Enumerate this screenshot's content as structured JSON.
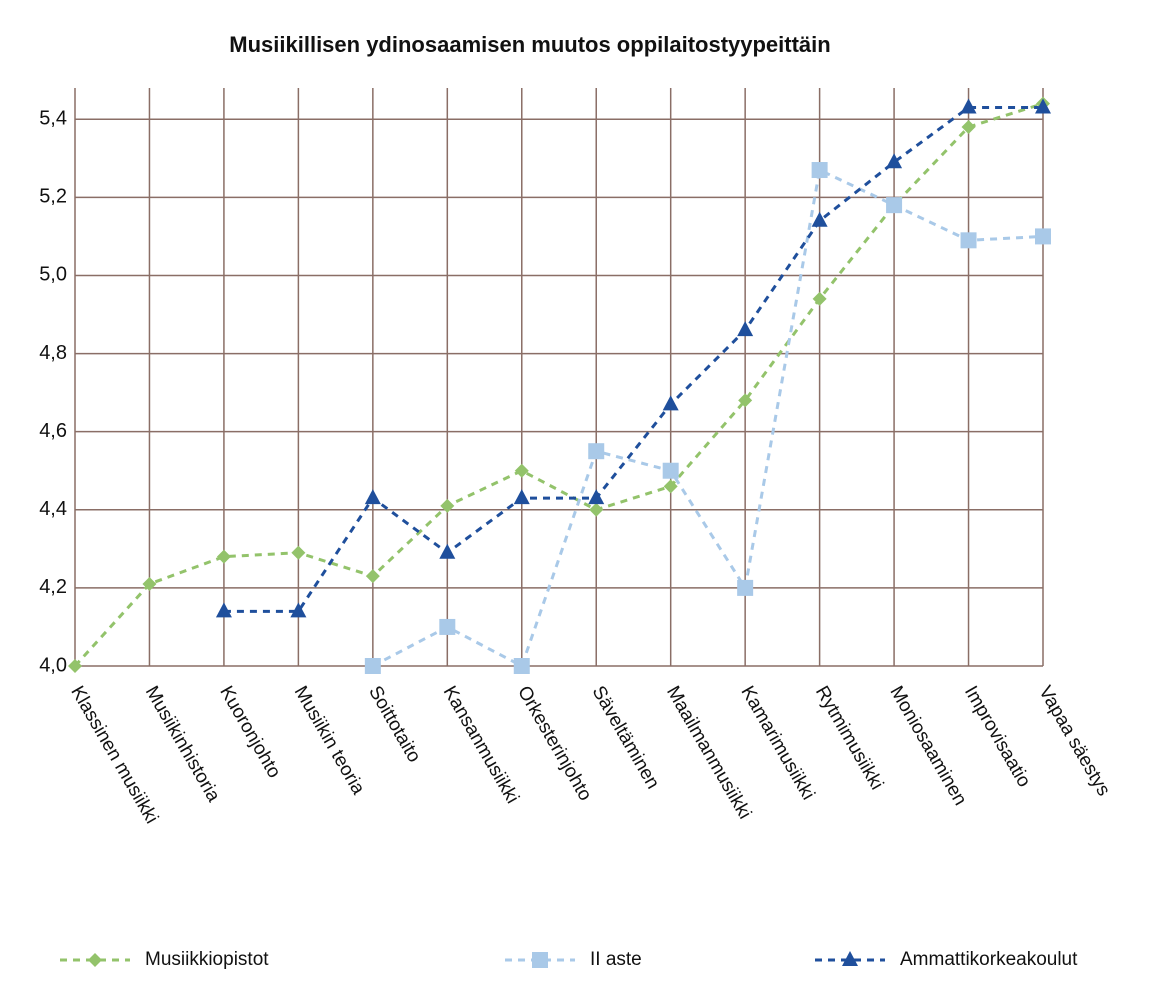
{
  "chart_data": {
    "type": "line",
    "title": "Musiikillisen ydinosaamisen muutos oppilaitostyypeittäin",
    "categories": [
      "Klassinen musiikki",
      "Musiikinhistoria",
      "Kuoronjohto",
      "Musiikin teoria",
      "Soittotaito",
      "Kansanmusiikki",
      "Orkesterinjohto",
      "Säveltäminen",
      "Maailmanmusiikki",
      "Kamarimusiikki",
      "Rytmimusiikki",
      "Moniosaaminen",
      "Improvisaatio",
      "Vapaa säestys"
    ],
    "series": [
      {
        "name": "Musiikkiopistot",
        "color": "#93c36b",
        "marker": "diamond",
        "values": [
          4.0,
          4.21,
          4.28,
          4.29,
          4.23,
          4.41,
          4.5,
          4.4,
          4.46,
          4.68,
          4.94,
          5.18,
          5.38,
          5.44
        ]
      },
      {
        "name": "II aste",
        "color": "#a9c9e8",
        "marker": "square",
        "values": [
          null,
          null,
          null,
          null,
          4.0,
          4.1,
          4.0,
          4.55,
          4.5,
          4.2,
          5.27,
          5.18,
          5.09,
          5.1
        ]
      },
      {
        "name": "Ammattikorkeakoulut",
        "color": "#1f4f9c",
        "marker": "triangle",
        "values": [
          null,
          null,
          4.14,
          4.14,
          4.43,
          4.29,
          4.43,
          4.43,
          4.67,
          4.86,
          5.14,
          5.29,
          5.43,
          5.43
        ]
      }
    ],
    "ylim": [
      4.0,
      5.48
    ],
    "yticks": [
      {
        "value": 4.0,
        "label": "4,0"
      },
      {
        "value": 4.2,
        "label": "4,2"
      },
      {
        "value": 4.4,
        "label": "4,4"
      },
      {
        "value": 4.6,
        "label": "4,6"
      },
      {
        "value": 4.8,
        "label": "4,8"
      },
      {
        "value": 5.0,
        "label": "5,0"
      },
      {
        "value": 5.2,
        "label": "5,2"
      },
      {
        "value": 5.4,
        "label": "5,4"
      }
    ],
    "grid": true,
    "legend": "bottom"
  }
}
